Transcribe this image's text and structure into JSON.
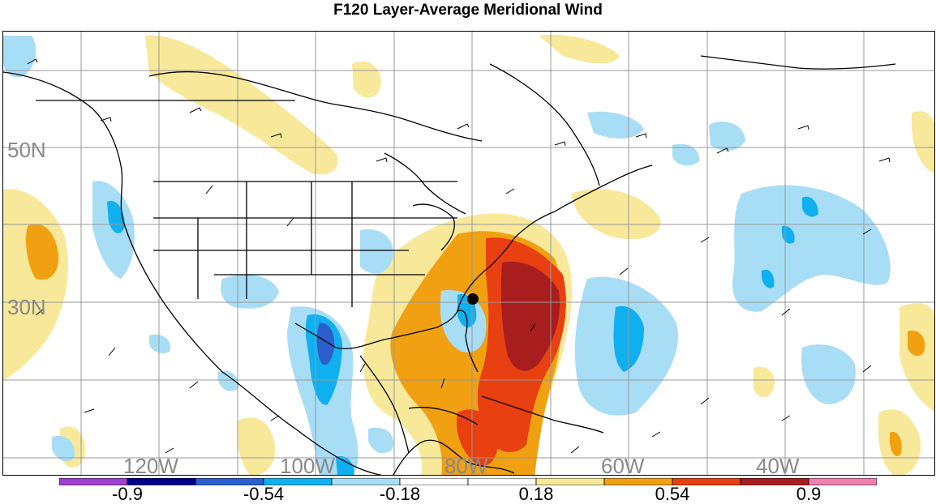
{
  "title": "F120 Layer-Average Meridional Wind",
  "longitude_labels": [
    "120W",
    "100W",
    "80W",
    "60W",
    "40W"
  ],
  "latitude_labels": [
    "50N",
    "30N"
  ],
  "colorbar": {
    "colors": [
      "#a040d0",
      "#00008b",
      "#2c5fcc",
      "#10b0f0",
      "#a8ddf6",
      "#ffffff",
      "#ffffff",
      "#f8e89a",
      "#f0a010",
      "#e84010",
      "#a81e1e",
      "#f080b0"
    ],
    "tick_labels": [
      "-0.9",
      "-0.54",
      "-0.18",
      "0.18",
      "0.54",
      "0.9"
    ]
  },
  "marker": {
    "name": "storm-center-dot",
    "color": "#000000"
  }
}
